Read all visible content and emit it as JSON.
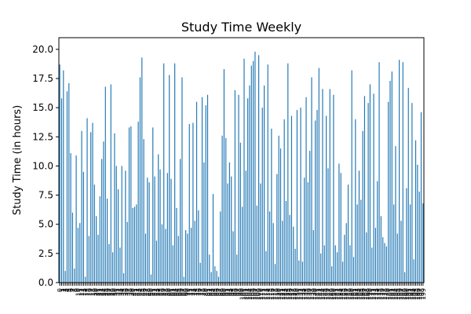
{
  "chart_data": {
    "type": "bar",
    "title": "Study Time Weekly",
    "xlabel": "",
    "ylabel": "Study Time (in hours)",
    "ylim": [
      0,
      21
    ],
    "yticks": [
      0.0,
      2.5,
      5.0,
      7.5,
      10.0,
      12.5,
      15.0,
      17.5,
      20.0
    ],
    "ytick_labels": [
      "0.0",
      "2.5",
      "5.0",
      "7.5",
      "10.0",
      "12.5",
      "15.0",
      "17.5",
      "20.0"
    ],
    "grid": false,
    "legend": "none",
    "bar_color": "#1f77b4",
    "categories": [
      "0",
      "1",
      "2",
      "3",
      "4",
      "5",
      "6",
      "7",
      "8",
      "9",
      "10",
      "11",
      "12",
      "13",
      "14",
      "15",
      "16",
      "17",
      "18",
      "19",
      "20",
      "21",
      "22",
      "23",
      "24",
      "25",
      "26",
      "27",
      "28",
      "29",
      "30",
      "31",
      "32",
      "33",
      "34",
      "35",
      "36",
      "37",
      "38",
      "39",
      "40",
      "41",
      "42",
      "43",
      "44",
      "45",
      "46",
      "47",
      "48",
      "49",
      "50",
      "51",
      "52",
      "53",
      "54",
      "55",
      "56",
      "57",
      "58",
      "59",
      "60",
      "61",
      "62",
      "63",
      "64",
      "65",
      "66",
      "67",
      "68",
      "69",
      "70",
      "71",
      "72",
      "73",
      "74",
      "75",
      "76",
      "77",
      "78",
      "79",
      "80",
      "81",
      "82",
      "83",
      "84",
      "85",
      "86",
      "87",
      "88",
      "89",
      "90",
      "91",
      "92",
      "93",
      "94",
      "95",
      "96",
      "97",
      "98",
      "99",
      "100",
      "101",
      "102",
      "103",
      "104",
      "105",
      "106",
      "107",
      "108",
      "109",
      "110",
      "111",
      "112",
      "113",
      "114",
      "115",
      "116",
      "117",
      "118",
      "119",
      "120",
      "121",
      "122",
      "123",
      "124",
      "125",
      "126",
      "127",
      "128",
      "129",
      "130",
      "131",
      "132",
      "133",
      "134",
      "135",
      "136",
      "137",
      "138",
      "139",
      "140",
      "141",
      "142",
      "143",
      "144",
      "145",
      "146",
      "147",
      "148",
      "149",
      "150",
      "151",
      "152",
      "153",
      "154",
      "155",
      "156",
      "157",
      "158",
      "159",
      "160",
      "161",
      "162",
      "163",
      "164",
      "165",
      "166",
      "167",
      "168",
      "169",
      "170",
      "171",
      "172",
      "173",
      "174",
      "175",
      "176",
      "177",
      "178",
      "179",
      "180",
      "181",
      "182",
      "183",
      "184",
      "185",
      "186",
      "187",
      "188",
      "189",
      "190",
      "191",
      "192",
      "193",
      "194",
      "195",
      "196",
      "197",
      "198",
      "199"
    ],
    "values": [
      18.7,
      15.8,
      18.2,
      1.0,
      16.4,
      17.1,
      11.1,
      6.0,
      1.2,
      10.9,
      4.7,
      5.1,
      13.0,
      9.5,
      0.5,
      14.1,
      4.0,
      12.9,
      13.7,
      8.4,
      5.7,
      4.1,
      7.4,
      10.6,
      12.1,
      16.8,
      7.2,
      3.3,
      17.0,
      2.6,
      12.8,
      10.0,
      8.0,
      3.0,
      10.0,
      0.8,
      9.6,
      5.2,
      13.3,
      13.4,
      6.4,
      6.5,
      6.7,
      13.8,
      17.6,
      19.3,
      12.3,
      4.2,
      9.0,
      8.6,
      0.7,
      13.3,
      9.1,
      3.6,
      11.0,
      9.7,
      5.0,
      18.8,
      4.6,
      9.4,
      17.8,
      8.9,
      3.2,
      18.8,
      6.4,
      4.0,
      10.6,
      17.6,
      0.5,
      4.5,
      4.2,
      13.6,
      4.7,
      13.7,
      5.3,
      15.5,
      6.2,
      1.7,
      15.9,
      10.3,
      15.2,
      16.1,
      2.4,
      0.9,
      7.6,
      1.4,
      1.0,
      0.5,
      6.1,
      12.6,
      18.3,
      12.4,
      8.5,
      10.3,
      9.1,
      4.4,
      16.5,
      2.4,
      16.1,
      12.0,
      6.5,
      19.2,
      9.6,
      15.8,
      16.9,
      18.6,
      19.0,
      19.8,
      6.6,
      19.5,
      8.5,
      15.0,
      16.9,
      2.7,
      18.7,
      6.1,
      13.2,
      5.1,
      1.6,
      9.3,
      12.6,
      11.5,
      5.3,
      14.0,
      7.0,
      18.8,
      5.8,
      14.3,
      4.8,
      2.9,
      14.8,
      1.9,
      15.0,
      1.8,
      9.0,
      15.9,
      8.6,
      11.3,
      17.6,
      4.5,
      13.9,
      14.8,
      18.4,
      2.5,
      16.6,
      3.2,
      14.3,
      9.8,
      16.6,
      1.4,
      16.1,
      3.2,
      2.6,
      10.2,
      9.4,
      1.8,
      4.1,
      5.1,
      8.4,
      3.2,
      18.2,
      2.2,
      14.0,
      6.7,
      9.6,
      7.1,
      13.0,
      16.0,
      4.3,
      15.4,
      17.0,
      3.0,
      16.2,
      4.7,
      8.7,
      18.9,
      5.7,
      3.9,
      3.4,
      3.1,
      15.5,
      17.3,
      18.1,
      6.7,
      11.7,
      4.2,
      19.1,
      5.3,
      18.9,
      0.9,
      8.1,
      16.7,
      6.7,
      15.4,
      2.0,
      12.2,
      10.1,
      7.8,
      14.6,
      6.8
    ]
  }
}
